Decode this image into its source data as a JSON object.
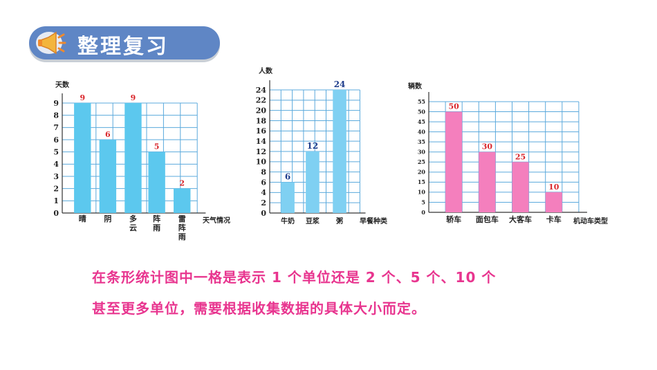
{
  "header": {
    "title": "整理复习"
  },
  "chart_data": [
    {
      "type": "bar",
      "ylabel": "天数",
      "xlabel": "天气情况",
      "categories": [
        "晴",
        "阴",
        "多云",
        "阵雨",
        "雷阵雨"
      ],
      "category_lines": [
        [
          "晴"
        ],
        [
          "阴"
        ],
        [
          "多",
          "云"
        ],
        [
          "阵",
          "雨"
        ],
        [
          "雷",
          "阵",
          "雨"
        ]
      ],
      "values": [
        9,
        6,
        9,
        5,
        2
      ],
      "yticks": [
        0,
        1,
        2,
        3,
        4,
        5,
        6,
        7,
        8,
        9
      ],
      "ylim": [
        0,
        9
      ],
      "grid": true,
      "bar_color": "#5cc8ee",
      "label_color": "#d9262b"
    },
    {
      "type": "bar",
      "ylabel": "人数",
      "xlabel": "早餐种类",
      "categories": [
        "牛奶",
        "豆浆",
        "粥"
      ],
      "category_lines": [
        [
          "牛奶"
        ],
        [
          "豆浆"
        ],
        [
          "粥"
        ]
      ],
      "values": [
        6,
        12,
        24
      ],
      "yticks": [
        0,
        2,
        4,
        6,
        8,
        10,
        12,
        14,
        16,
        18,
        20,
        22,
        24
      ],
      "ylim": [
        0,
        24
      ],
      "grid": true,
      "bar_color": "#7fd0f2",
      "label_color": "#1f3d8c"
    },
    {
      "type": "bar",
      "ylabel": "辆数",
      "xlabel": "机动车类型",
      "categories": [
        "轿车",
        "面包车",
        "大客车",
        "卡车"
      ],
      "category_lines": [
        [
          "轿车"
        ],
        [
          "面包车"
        ],
        [
          "大客车"
        ],
        [
          "卡车"
        ]
      ],
      "values": [
        50,
        30,
        25,
        10
      ],
      "yticks": [
        0,
        5,
        10,
        15,
        20,
        25,
        30,
        35,
        40,
        45,
        50,
        55
      ],
      "ylim": [
        0,
        55
      ],
      "grid": true,
      "bar_color": "#f47fbd",
      "label_color": "#d9262b"
    }
  ],
  "note": {
    "line1": "在条形统计图中一格是表示 1 个单位还是 2 个、5 个、10 个",
    "line2": "甚至更多单位，需要根据收集数据的具体大小而定。"
  }
}
